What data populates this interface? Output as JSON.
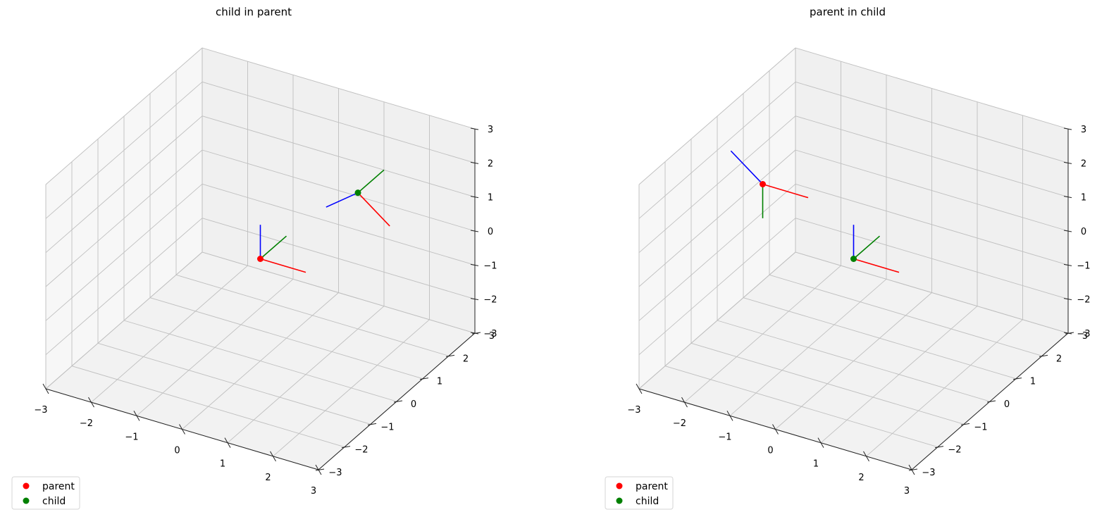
{
  "chart_data": [
    {
      "type": "scatter",
      "title": "child in parent",
      "xlim": [
        -3,
        3
      ],
      "ylim": [
        -3,
        3
      ],
      "zlim": [
        -3,
        3
      ],
      "xticks": [
        "−3",
        "−2",
        "−1",
        "0",
        "1",
        "2",
        "3"
      ],
      "yticks": [
        "−3",
        "−2",
        "−1",
        "0",
        "1",
        "2",
        "3"
      ],
      "zticks": [
        "−3",
        "−2",
        "−1",
        "0",
        "1",
        "2",
        "3"
      ],
      "grid": true,
      "legend_placement": "lower-left",
      "series": [
        {
          "name": "parent",
          "color": "#ff0000",
          "point": [
            0,
            0,
            0
          ],
          "axes": [
            {
              "color": "#ff0000",
              "end": [
                1,
                0,
                0
              ]
            },
            {
              "color": "#008000",
              "end": [
                0,
                1,
                0
              ]
            },
            {
              "color": "#0000ff",
              "end": [
                0,
                0,
                1
              ]
            }
          ]
        },
        {
          "name": "child",
          "color": "#008000",
          "point": [
            1,
            2,
            1
          ],
          "axes": [
            {
              "color": "#ff0000",
              "end": [
                1.7,
                2,
                0.3
              ]
            },
            {
              "color": "#008000",
              "end": [
                1,
                3,
                1
              ]
            },
            {
              "color": "#0000ff",
              "end": [
                0.3,
                2,
                0.3
              ]
            }
          ]
        }
      ]
    },
    {
      "type": "scatter",
      "title": "parent in child",
      "xlim": [
        -3,
        3
      ],
      "ylim": [
        -3,
        3
      ],
      "zlim": [
        -3,
        3
      ],
      "xticks": [
        "−3",
        "−2",
        "−1",
        "0",
        "1",
        "2",
        "3"
      ],
      "yticks": [
        "−3",
        "−2",
        "−1",
        "0",
        "1",
        "2",
        "3"
      ],
      "zticks": [
        "−3",
        "−2",
        "−1",
        "0",
        "1",
        "2",
        "3"
      ],
      "grid": true,
      "legend_placement": "lower-left",
      "series": [
        {
          "name": "parent",
          "color": "#ff0000",
          "point": [
            -2,
            0,
            1.4
          ],
          "axes": [
            {
              "color": "#ff0000",
              "end": [
                -1,
                0,
                1.4
              ]
            },
            {
              "color": "#008000",
              "end": [
                -2,
                0,
                0.4
              ]
            },
            {
              "color": "#0000ff",
              "end": [
                -2.7,
                0,
                2.1
              ]
            }
          ]
        },
        {
          "name": "child",
          "color": "#008000",
          "point": [
            0,
            0,
            0
          ],
          "axes": [
            {
              "color": "#ff0000",
              "end": [
                1,
                0,
                0
              ]
            },
            {
              "color": "#008000",
              "end": [
                0,
                1,
                0
              ]
            },
            {
              "color": "#0000ff",
              "end": [
                0,
                0,
                1
              ]
            }
          ]
        }
      ]
    }
  ]
}
